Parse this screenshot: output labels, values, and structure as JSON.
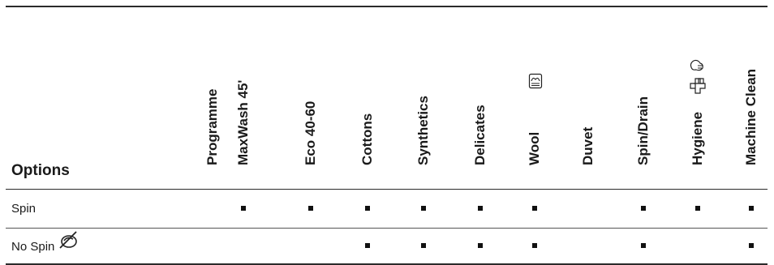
{
  "table": {
    "corner_label": "Options",
    "first_header": "Programme",
    "columns": [
      {
        "label": "MaxWash 45'",
        "icon": null
      },
      {
        "label": "Eco 40-60",
        "icon": null
      },
      {
        "label": "Cottons",
        "icon": null
      },
      {
        "label": "Synthetics",
        "icon": null
      },
      {
        "label": "Delicates",
        "icon": null
      },
      {
        "label": "Wool",
        "icon": "wool-hand-wash-icon"
      },
      {
        "label": "Duvet",
        "icon": null
      },
      {
        "label": "Spin/Drain",
        "icon": null
      },
      {
        "label": "Hygiene",
        "icon": "hygiene-steam-icon"
      },
      {
        "label": "Machine Clean",
        "icon": null
      }
    ],
    "rows": [
      {
        "label": "Spin",
        "icon": null,
        "marks": [
          true,
          true,
          true,
          true,
          true,
          true,
          false,
          true,
          true,
          true
        ]
      },
      {
        "label": "No Spin",
        "icon": "no-spin-icon",
        "marks": [
          false,
          false,
          true,
          true,
          true,
          true,
          false,
          true,
          false,
          true
        ]
      }
    ],
    "mark_symbol": "■"
  }
}
